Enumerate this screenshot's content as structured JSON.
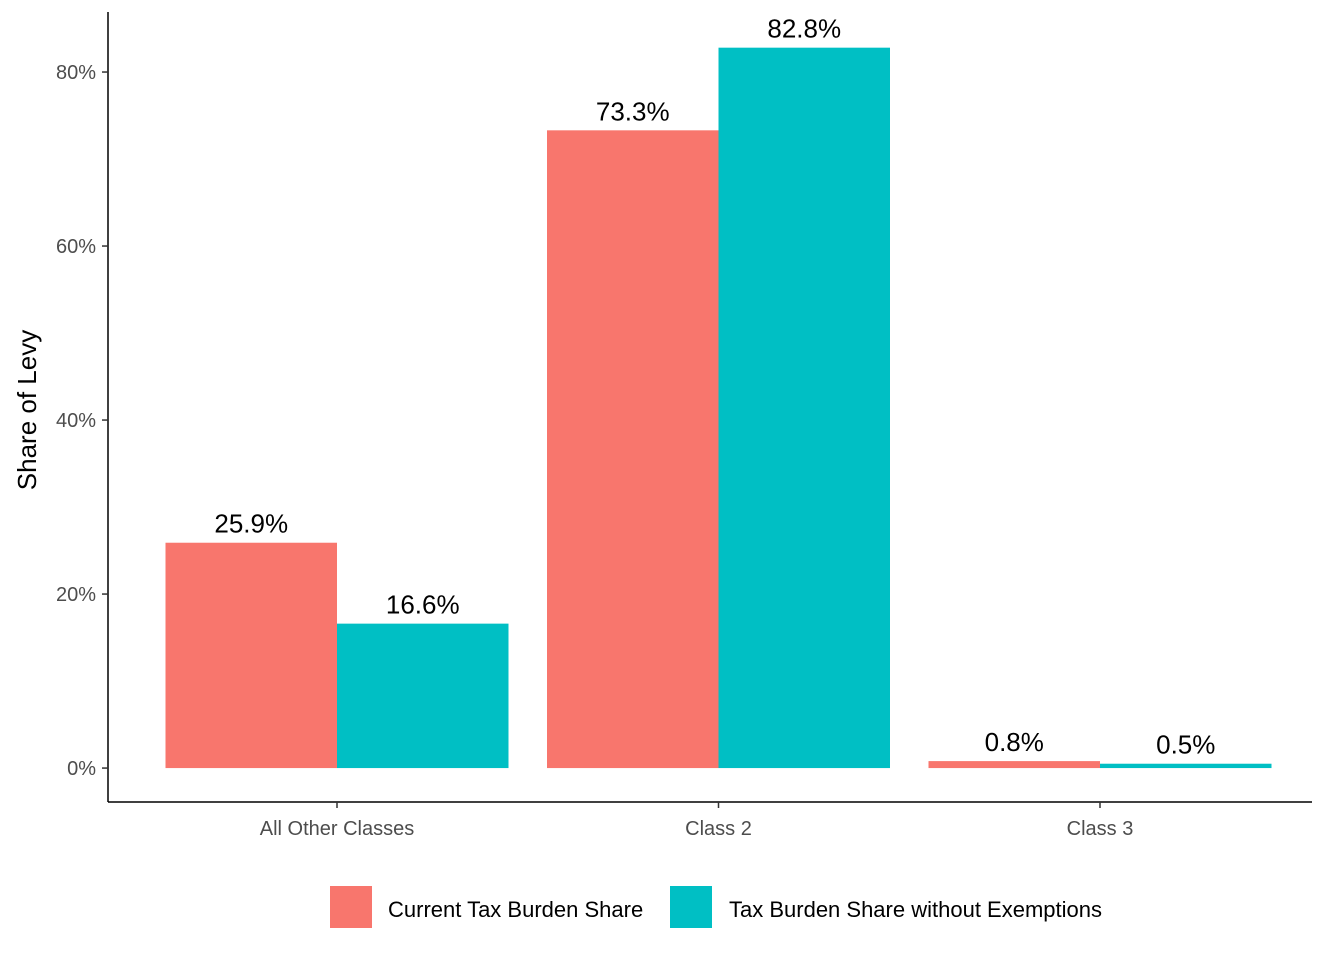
{
  "chart_data": {
    "type": "bar",
    "title": "",
    "xlabel": "",
    "ylabel": "Share of Levy",
    "categories": [
      "All Other Classes",
      "Class 2",
      "Class 3"
    ],
    "series": [
      {
        "name": "Current Tax Burden Share",
        "color": "#F8766D",
        "values": [
          25.9,
          73.3,
          0.8
        ],
        "labels": [
          "25.9%",
          "73.3%",
          "0.8%"
        ]
      },
      {
        "name": "Tax Burden Share without Exemptions",
        "color": "#00BFC4",
        "values": [
          16.6,
          82.8,
          0.5
        ],
        "labels": [
          "16.6%",
          "82.8%",
          "0.5%"
        ]
      }
    ],
    "ylim": [
      -3.9,
      86.9
    ],
    "yticks": [
      0,
      20,
      40,
      60,
      80
    ],
    "ytick_labels": [
      "0%",
      "20%",
      "40%",
      "60%",
      "80%"
    ],
    "grid": false,
    "legend_position": "bottom"
  }
}
